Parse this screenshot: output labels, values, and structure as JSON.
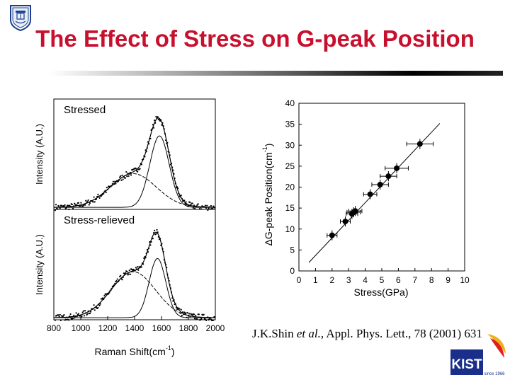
{
  "slide": {
    "title": "The Effect of Stress on G-peak Position",
    "title_color": "#c8102e",
    "citation_author": "J.K.Shin ",
    "citation_etal": "et al.",
    "citation_rest": ", Appl. Phys. Lett., 78 (2001) 631"
  },
  "logos": {
    "seal": "university-seal",
    "kist": {
      "text": "KIST",
      "subtext": "since 1966",
      "color": "#1a2f8a",
      "accent": "#e0201c"
    }
  },
  "chart_data": [
    {
      "type": "line",
      "title": "",
      "xlabel_base": "Raman Shift(cm",
      "xlabel_sup": "-1",
      "xlabel_close": ")",
      "ylabel": "Intensity (A.U.)",
      "xlim": [
        800,
        2000
      ],
      "xticks": [
        800,
        1000,
        1200,
        1400,
        1600,
        1800,
        2000
      ],
      "panels": [
        {
          "label": "Stressed",
          "ylabel": "Intensity (A.U.)",
          "d_band": {
            "center": 1390,
            "width": 170,
            "amp": 0.33
          },
          "g_band": {
            "center": 1585,
            "width": 72,
            "amp": 0.7
          },
          "baseline": 0.02,
          "ylim": [
            0,
            1.08
          ]
        },
        {
          "label": "Stress-relieved",
          "ylabel": "Intensity (A.U.)",
          "d_band": {
            "center": 1390,
            "width": 165,
            "amp": 0.45
          },
          "g_band": {
            "center": 1570,
            "width": 62,
            "amp": 0.58
          },
          "baseline": 0.02,
          "ylim": [
            0,
            1.08
          ]
        }
      ]
    },
    {
      "type": "scatter",
      "title": "",
      "xlabel": "Stress(GPa)",
      "ylabel_pre": "Δ",
      "ylabel_base": "G-peak Position(cm",
      "ylabel_sup": "-1",
      "ylabel_close": ")",
      "xlim": [
        0,
        10
      ],
      "ylim": [
        0,
        40
      ],
      "xticks": [
        0,
        1,
        2,
        3,
        4,
        5,
        6,
        7,
        8,
        9,
        10
      ],
      "yticks": [
        0,
        5,
        10,
        15,
        20,
        25,
        30,
        35,
        40
      ],
      "points": [
        {
          "x": 2.0,
          "y": 8.5,
          "xerr": 0.3
        },
        {
          "x": 2.8,
          "y": 11.8,
          "xerr": 0.3
        },
        {
          "x": 3.2,
          "y": 13.6,
          "xerr": 0.35
        },
        {
          "x": 3.4,
          "y": 14.3,
          "xerr": 0.4
        },
        {
          "x": 3.3,
          "y": 14.0,
          "xerr": 0.4
        },
        {
          "x": 4.3,
          "y": 18.3,
          "xerr": 0.4
        },
        {
          "x": 4.9,
          "y": 20.6,
          "xerr": 0.5
        },
        {
          "x": 5.4,
          "y": 22.6,
          "xerr": 0.5
        },
        {
          "x": 5.9,
          "y": 24.5,
          "xerr": 0.7
        },
        {
          "x": 7.3,
          "y": 30.3,
          "xerr": 0.8
        }
      ],
      "yerr": 1.2,
      "fit_line": {
        "x": [
          0.6,
          8.5
        ],
        "y": [
          2.0,
          35.2
        ]
      }
    }
  ]
}
